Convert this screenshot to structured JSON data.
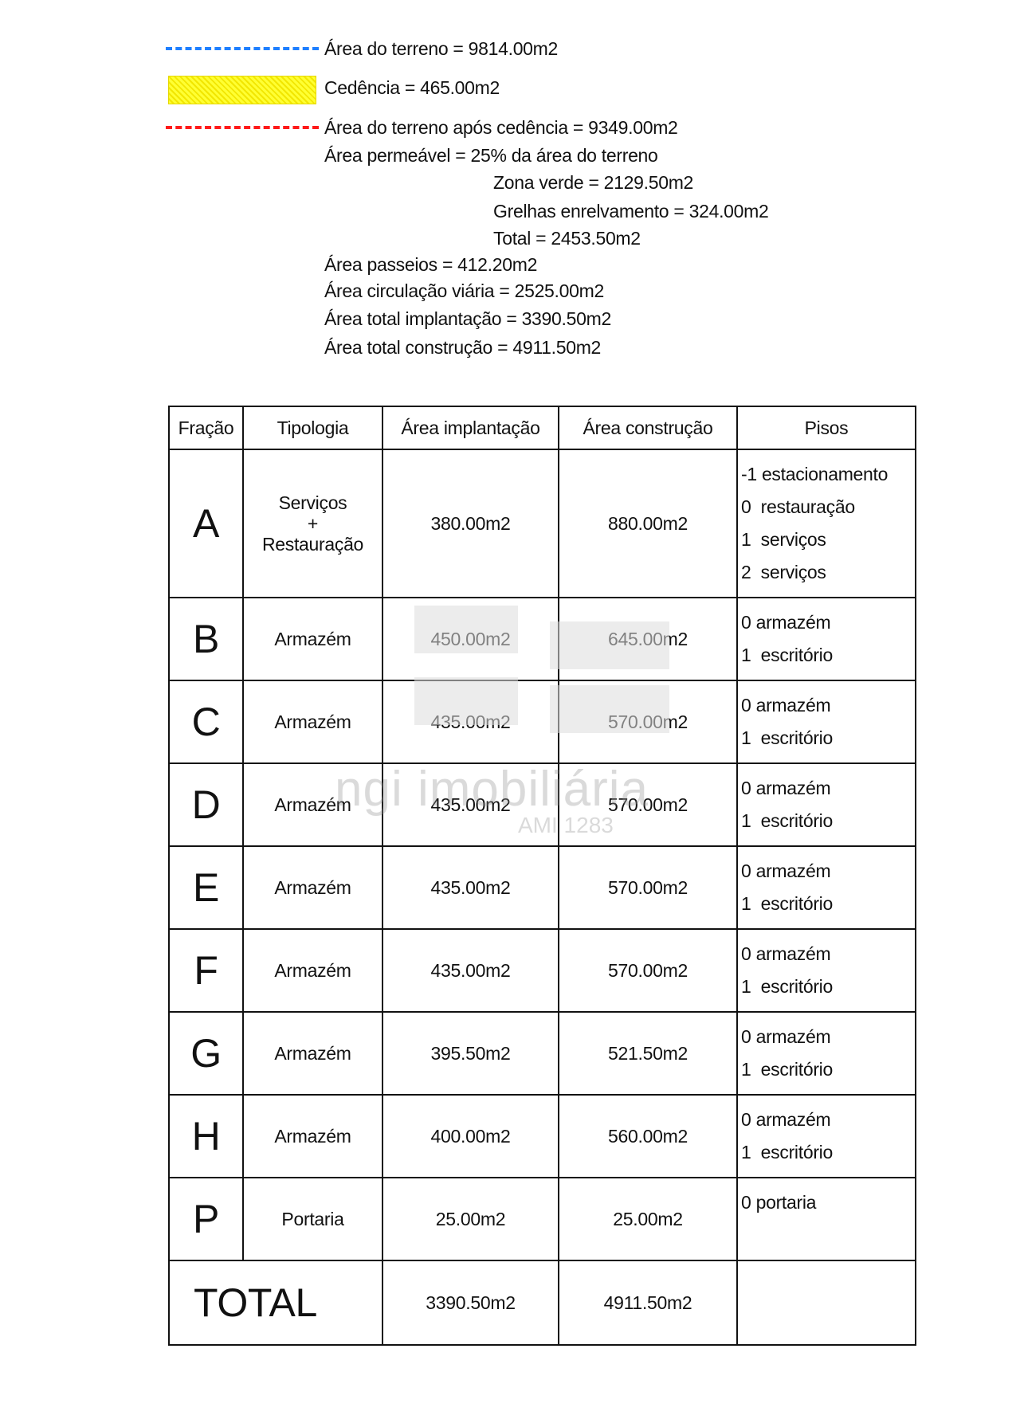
{
  "legend": {
    "line_colors": {
      "terreno": "#1e7fff",
      "cedencia": "#ffff33",
      "apos": "#ff1a1a"
    },
    "terreno": "Área do terreno = 9814.00m2",
    "cedencia": "Cedência = 465.00m2",
    "apos_cedencia": "Área do terreno após cedência = 9349.00m2",
    "permeavel": "Área permeável = 25% da área do terreno",
    "zona_verde": "Zona verde = 2129.50m2",
    "grelhas": "Grelhas enrelvamento = 324.00m2",
    "total_perm": "Total = 2453.50m2",
    "passeios": "Área passeios = 412.20m2",
    "circulacao": "Área circulação viária = 2525.00m2",
    "implantacao": "Área total implantação = 3390.50m2",
    "construcao": "Área total construção = 4911.50m2"
  },
  "table": {
    "headers": [
      "Fração",
      "Tipologia",
      "Área implantação",
      "Área construção",
      "Pisos"
    ],
    "rows": [
      {
        "fracao": "A",
        "tipo1": "Serviços",
        "tipo2": "+",
        "tipo3": "Restauração",
        "impl": "380.00m2",
        "constr": "880.00m2",
        "pisos": [
          "-1 estacionamento",
          "0  restauração",
          "1  serviços",
          "2  serviços"
        ]
      },
      {
        "fracao": "B",
        "tipo1": "Armazém",
        "impl": "450.00m2",
        "constr": "645.00m2",
        "pisos": [
          "0 armazém",
          "1  escritório"
        ]
      },
      {
        "fracao": "C",
        "tipo1": "Armazém",
        "impl": "435.00m2",
        "constr": "570.00m2",
        "pisos": [
          "0 armazém",
          "1  escritório"
        ]
      },
      {
        "fracao": "D",
        "tipo1": "Armazém",
        "impl": "435.00m2",
        "constr": "570.00m2",
        "pisos": [
          "0 armazém",
          "1  escritório"
        ]
      },
      {
        "fracao": "E",
        "tipo1": "Armazém",
        "impl": "435.00m2",
        "constr": "570.00m2",
        "pisos": [
          "0 armazém",
          "1  escritório"
        ]
      },
      {
        "fracao": "F",
        "tipo1": "Armazém",
        "impl": "435.00m2",
        "constr": "570.00m2",
        "pisos": [
          "0 armazém",
          "1  escritório"
        ]
      },
      {
        "fracao": "G",
        "tipo1": "Armazém",
        "impl": "395.50m2",
        "constr": "521.50m2",
        "pisos": [
          "0 armazém",
          "1  escritório"
        ]
      },
      {
        "fracao": "H",
        "tipo1": "Armazém",
        "impl": "400.00m2",
        "constr": "560.00m2",
        "pisos": [
          "0 armazém",
          "1  escritório"
        ]
      },
      {
        "fracao": "P",
        "tipo1": "Portaria",
        "impl": "25.00m2",
        "constr": "25.00m2",
        "pisos": [
          "0 portaria"
        ]
      }
    ],
    "total": {
      "label": "TOTAL",
      "impl": "3390.50m2",
      "constr": "4911.50m2"
    }
  },
  "watermark": {
    "brand": "ngi imobiliária",
    "ami": "AMI 1283"
  }
}
